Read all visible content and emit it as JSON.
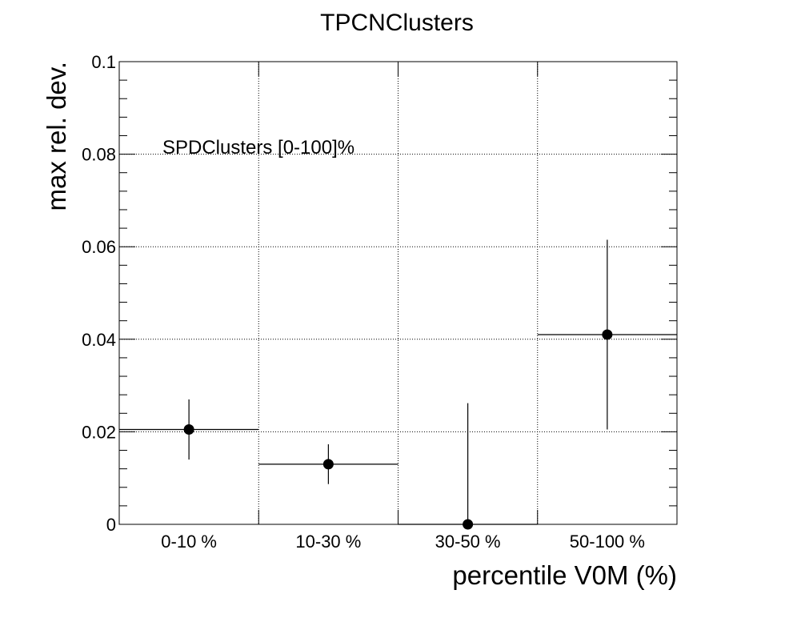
{
  "chart_data": {
    "type": "scatter",
    "title": "TPCNClusters",
    "xlabel": "percentile V0M (%)",
    "ylabel": "max rel. dev.",
    "annotation": "SPDClusters [0-100]%",
    "categories": [
      "0-10 %",
      "10-30 %",
      "30-50 %",
      "50-100 %"
    ],
    "series": [
      {
        "values": [
          0.0205,
          0.013,
          0.0,
          0.041
        ],
        "y_err": [
          0.0065,
          0.0043,
          0.0262,
          0.0205
        ],
        "x_err": "bin width"
      }
    ],
    "ylim": [
      0,
      0.1
    ],
    "yticks": [
      "0",
      "0.02",
      "0.04",
      "0.06",
      "0.08",
      "0.1"
    ],
    "grid": true,
    "grid_style": "dotted",
    "marker_color": "#000000"
  }
}
